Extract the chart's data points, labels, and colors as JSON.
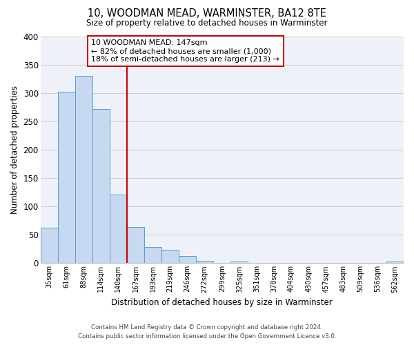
{
  "title": "10, WOODMAN MEAD, WARMINSTER, BA12 8TE",
  "subtitle": "Size of property relative to detached houses in Warminster",
  "xlabel": "Distribution of detached houses by size in Warminster",
  "ylabel": "Number of detached properties",
  "bin_labels": [
    "35sqm",
    "61sqm",
    "88sqm",
    "114sqm",
    "140sqm",
    "167sqm",
    "193sqm",
    "219sqm",
    "246sqm",
    "272sqm",
    "299sqm",
    "325sqm",
    "351sqm",
    "378sqm",
    "404sqm",
    "430sqm",
    "457sqm",
    "483sqm",
    "509sqm",
    "536sqm",
    "562sqm"
  ],
  "bar_heights": [
    63,
    302,
    330,
    272,
    121,
    64,
    29,
    24,
    13,
    4,
    0,
    3,
    0,
    0,
    0,
    0,
    0,
    0,
    0,
    0,
    3
  ],
  "bar_color": "#c6d9f1",
  "bar_edge_color": "#5b9bd5",
  "grid_color": "#d0d0d0",
  "background_color": "#eef2f8",
  "ylim": [
    0,
    400
  ],
  "yticks": [
    0,
    50,
    100,
    150,
    200,
    250,
    300,
    350,
    400
  ],
  "vline_x": 4.5,
  "vline_color": "#cc0000",
  "annotation_line1": "10 WOODMAN MEAD: 147sqm",
  "annotation_line2": "← 82% of detached houses are smaller (1,000)",
  "annotation_line3": "18% of semi-detached houses are larger (213) →",
  "annotation_box_color": "#ffffff",
  "annotation_box_edge_color": "#cc0000",
  "footer_line1": "Contains HM Land Registry data © Crown copyright and database right 2024.",
  "footer_line2": "Contains public sector information licensed under the Open Government Licence v3.0."
}
